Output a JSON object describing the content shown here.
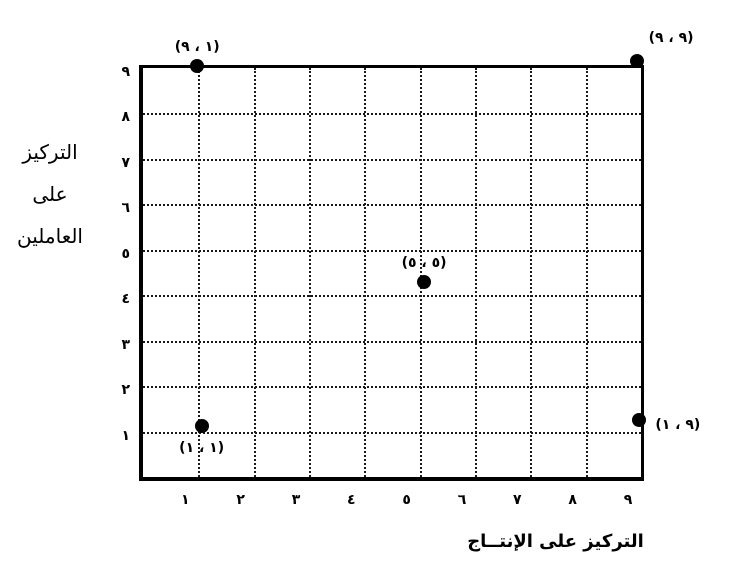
{
  "figure": {
    "background": "#ffffff",
    "ink": "#000000"
  },
  "chart_data": {
    "type": "scatter",
    "title": "",
    "xlabel": "التركيز على الإنتــاج",
    "ylabel": "التركيز على العاملين",
    "ylabel_lines": [
      "التركيز",
      "على",
      "العاملين"
    ],
    "xlim": [
      0,
      9
    ],
    "ylim": [
      0,
      9
    ],
    "grid": "dotted interior gridlines at integers 1-8, solid black frame",
    "legend": "none",
    "x_tick_values": [
      1,
      2,
      3,
      4,
      5,
      6,
      7,
      8,
      9
    ],
    "x_tick_labels": [
      "١",
      "٢",
      "٣",
      "٤",
      "٥",
      "٦",
      "٧",
      "٨",
      "٩"
    ],
    "y_tick_values": [
      1,
      2,
      3,
      4,
      5,
      6,
      7,
      8,
      9
    ],
    "y_tick_labels": [
      "١",
      "٢",
      "٣",
      "٤",
      "٥",
      "٦",
      "٧",
      "٨",
      "٩"
    ],
    "points": [
      {
        "x": 1,
        "y": 9,
        "label": "(٩ ، ١)",
        "draw_x": 0.98,
        "draw_y": 9.05,
        "label_pos": "above"
      },
      {
        "x": 9,
        "y": 9,
        "label": "(٩ ، ٩)",
        "draw_x": 8.92,
        "draw_y": 9.15,
        "label_pos": "above-right"
      },
      {
        "x": 5,
        "y": 5,
        "label": "(٥ ، ٥)",
        "draw_x": 5.08,
        "draw_y": 4.3,
        "label_pos": "above"
      },
      {
        "x": 1,
        "y": 1,
        "label": "(١ ، ١)",
        "draw_x": 1.06,
        "draw_y": 1.12,
        "label_pos": "below"
      },
      {
        "x": 9,
        "y": 1,
        "label": "(١ ، ٩)",
        "draw_x": 8.97,
        "draw_y": 1.25,
        "label_pos": "right"
      }
    ]
  }
}
